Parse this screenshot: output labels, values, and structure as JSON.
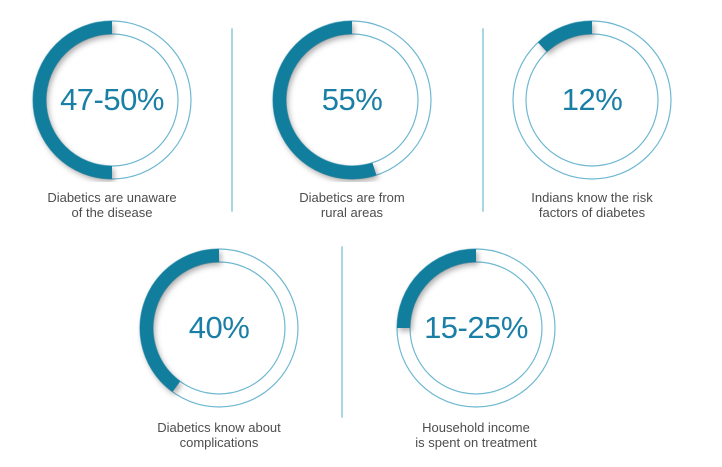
{
  "chart_data": {
    "type": "donut",
    "units": "percent",
    "layout": {
      "rows": [
        3,
        2
      ],
      "arc_start": "top",
      "arc_direction": "counterclockwise",
      "legend": "none",
      "background": "#ffffff"
    },
    "items": [
      {
        "value_label": "47-50%",
        "fill_pct": 50,
        "caption_line1": "Diabetics are unaware",
        "caption_line2": "of the disease"
      },
      {
        "value_label": "55%",
        "fill_pct": 55,
        "caption_line1": "Diabetics are from",
        "caption_line2": "rural areas"
      },
      {
        "value_label": "12%",
        "fill_pct": 12,
        "caption_line1": "Indians know the risk",
        "caption_line2": "factors of diabetes"
      },
      {
        "value_label": "40%",
        "fill_pct": 40,
        "caption_line1": "Diabetics know about",
        "caption_line2": "complications"
      },
      {
        "value_label": "15-25%",
        "fill_pct": 25,
        "caption_line1": "Household income",
        "caption_line2": "is spent on treatment"
      }
    ],
    "colors": {
      "arc_fill": "#117e9d",
      "ring_stroke": "#6fb8d2",
      "value_text": "#1a7fa6",
      "caption_text": "#4d4d4d",
      "separator": "#a9d8e4"
    }
  }
}
